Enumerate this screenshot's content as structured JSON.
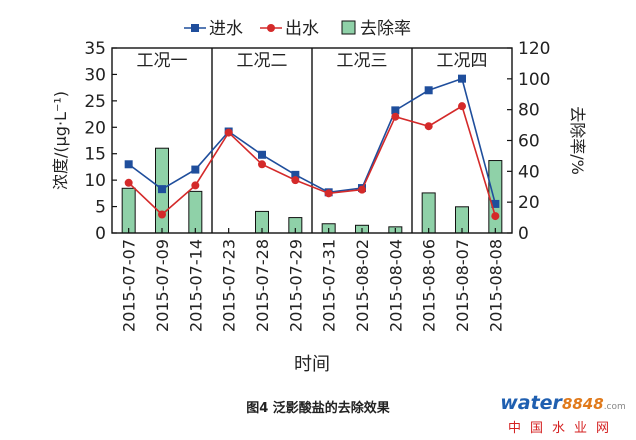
{
  "chart_data": {
    "type": "bar+line",
    "x": [
      "2015-07-07",
      "2015-07-09",
      "2015-07-14",
      "2015-07-23",
      "2015-07-28",
      "2015-07-29",
      "2015-07-31",
      "2015-08-02",
      "2015-08-04",
      "2015-08-06",
      "2015-08-07",
      "2015-08-08"
    ],
    "xlabel": "时间",
    "ylabel": "浓度/(μg·L⁻¹)",
    "y2label": "去除率/%",
    "ylim": [
      0,
      35
    ],
    "y2lim": [
      0,
      120
    ],
    "yticks": [
      "0",
      "5",
      "10",
      "15",
      "20",
      "25",
      "30",
      "35"
    ],
    "y2ticks": [
      "0",
      "20",
      "40",
      "60",
      "80",
      "100",
      "120"
    ],
    "series": [
      {
        "name": "进水",
        "type": "line",
        "axis": "left",
        "color": "#1f4e9c",
        "marker": "square",
        "values": [
          13,
          8.3,
          12,
          19.2,
          14.8,
          11,
          7.7,
          8.5,
          23.2,
          27,
          29.2,
          5.5
        ]
      },
      {
        "name": "出水",
        "type": "line",
        "axis": "left",
        "color": "#d42a2a",
        "marker": "circle",
        "values": [
          9.5,
          3.5,
          9,
          19,
          13,
          10,
          7.5,
          8.2,
          22,
          20.2,
          24,
          3.2
        ]
      },
      {
        "name": "去除率",
        "type": "bar",
        "axis": "right",
        "color": "#8fd1a8",
        "values": [
          29,
          55,
          27,
          0,
          14,
          10,
          6,
          5,
          4,
          26,
          17,
          47
        ]
      }
    ],
    "groups": [
      {
        "label": "工况一",
        "start": 0,
        "end": 2
      },
      {
        "label": "工况二",
        "start": 3,
        "end": 5
      },
      {
        "label": "工况三",
        "start": 6,
        "end": 8
      },
      {
        "label": "工况四",
        "start": 9,
        "end": 11
      }
    ],
    "legend_position": "top"
  },
  "caption": "图4  泛影酸盐的去除效果",
  "watermark": {
    "logo_main": "water",
    "logo_num": "8848",
    "logo_domain": ".com",
    "subtitle": "中国水业网"
  }
}
